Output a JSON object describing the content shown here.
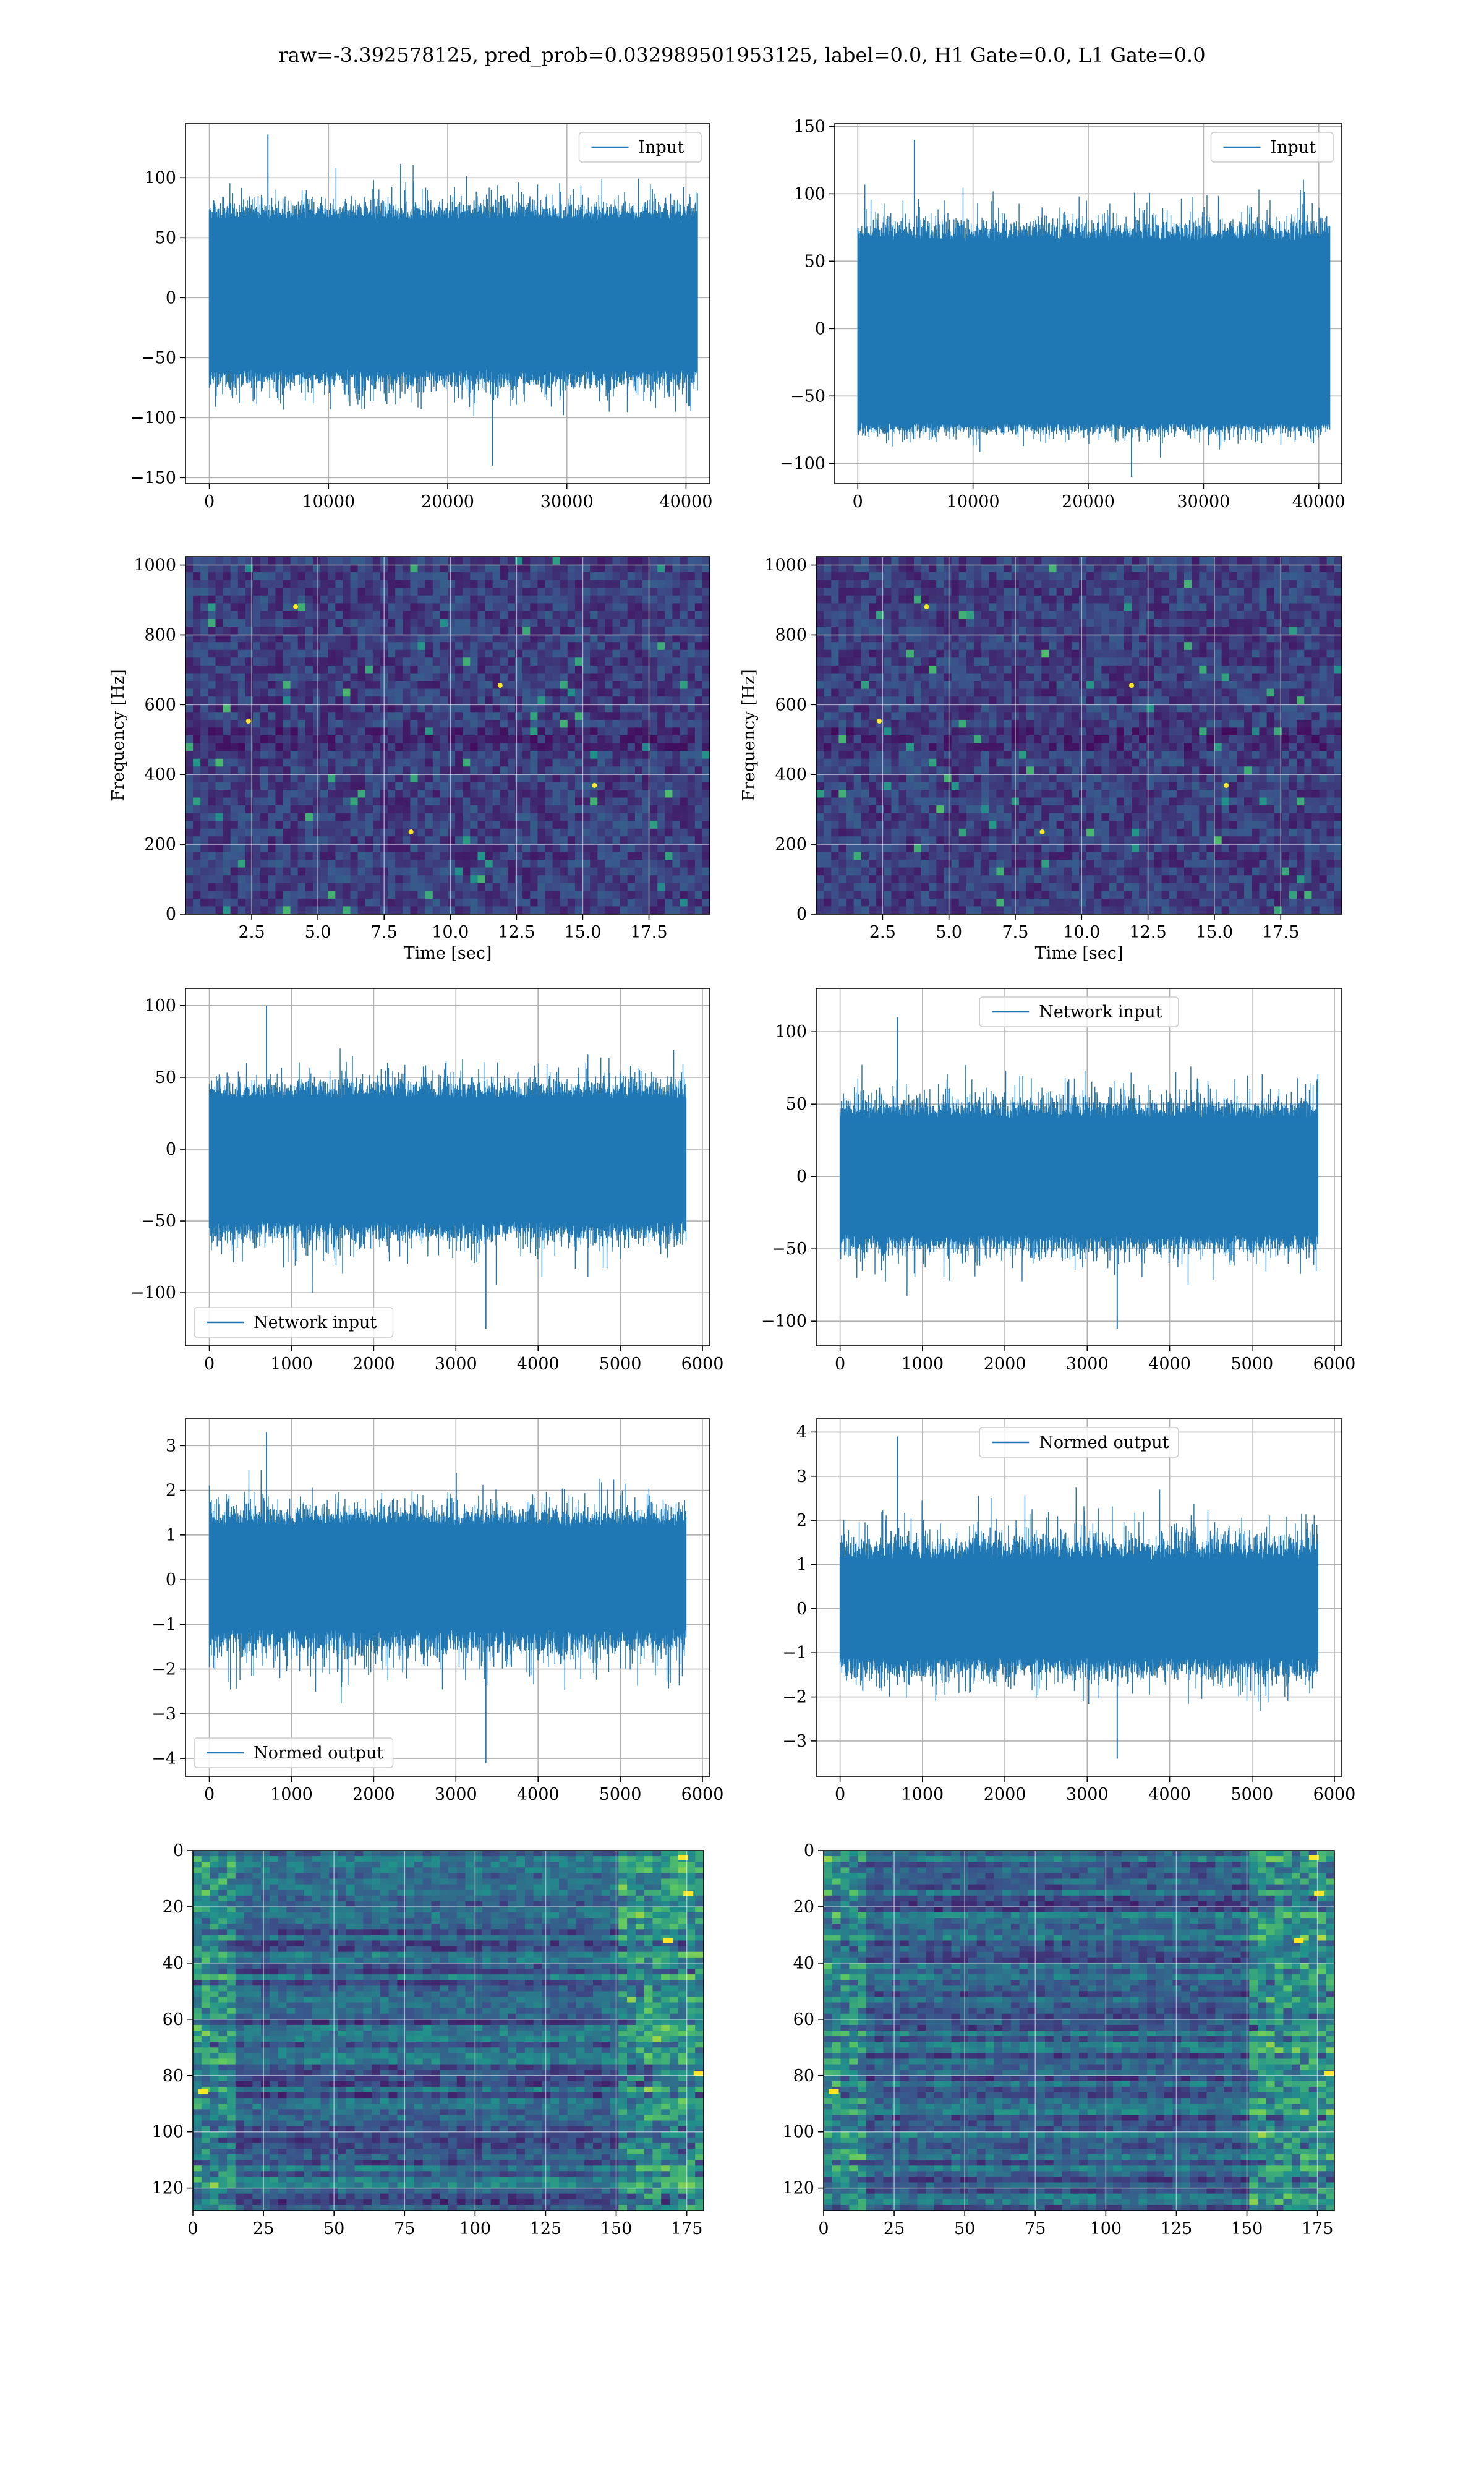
{
  "figure": {
    "title": "raw=-3.392578125, pred_prob=0.032989501953125, label=0.0, H1 Gate=0.0, L1 Gate=0.0"
  },
  "colors": {
    "line": "#1f77b4",
    "grid": "#b0b0b0",
    "spine": "#000000",
    "viridis_dark": "#440154",
    "viridis_mid": "#21918c",
    "viridis_bright": "#fde725"
  },
  "chart_data": [
    {
      "id": "h1-input",
      "type": "line",
      "series": [
        {
          "name": "Input",
          "role": "noise-band"
        }
      ],
      "legend": "top-right",
      "grid": true,
      "xlim": [
        -2000,
        42000
      ],
      "ylim": [
        -155,
        145
      ],
      "xticks": [
        0,
        10000,
        20000,
        30000,
        40000
      ],
      "yticks": [
        -150,
        -100,
        -50,
        0,
        50,
        100
      ],
      "x_range": [
        0,
        40960
      ],
      "band": [
        -60,
        65
      ],
      "spikes": [
        -140,
        136
      ]
    },
    {
      "id": "l1-input",
      "type": "line",
      "series": [
        {
          "name": "Input",
          "role": "noise-band"
        }
      ],
      "legend": "top-right",
      "grid": true,
      "xlim": [
        -2000,
        42000
      ],
      "ylim": [
        -115,
        152
      ],
      "xticks": [
        0,
        10000,
        20000,
        30000,
        40000
      ],
      "yticks": [
        -100,
        -50,
        0,
        50,
        100,
        150
      ],
      "x_range": [
        0,
        40960
      ],
      "band": [
        -70,
        65
      ],
      "spikes": [
        -110,
        140
      ]
    },
    {
      "id": "h1-spectrogram",
      "type": "heatmap",
      "colormap": "viridis",
      "grid": true,
      "xlabel": "Time [sec]",
      "ylabel": "Frequency [Hz]",
      "xlim": [
        0,
        19.8
      ],
      "ylim": [
        0,
        1024
      ],
      "xticks": [
        2.5,
        5.0,
        7.5,
        10.0,
        12.5,
        15.0,
        17.5
      ],
      "yticks": [
        0,
        200,
        400,
        600,
        800,
        1000
      ]
    },
    {
      "id": "l1-spectrogram",
      "type": "heatmap",
      "colormap": "viridis",
      "grid": true,
      "xlabel": "Time [sec]",
      "ylabel": "Frequency [Hz]",
      "xlim": [
        0,
        19.8
      ],
      "ylim": [
        0,
        1024
      ],
      "xticks": [
        2.5,
        5.0,
        7.5,
        10.0,
        12.5,
        15.0,
        17.5
      ],
      "yticks": [
        0,
        200,
        400,
        600,
        800,
        1000
      ]
    },
    {
      "id": "h1-network-input",
      "type": "line",
      "series": [
        {
          "name": "Network input",
          "role": "noise-band"
        }
      ],
      "legend": "bottom-left",
      "grid": true,
      "xlim": [
        -290,
        6090
      ],
      "ylim": [
        -137,
        112
      ],
      "xticks": [
        0,
        1000,
        2000,
        3000,
        4000,
        5000,
        6000
      ],
      "yticks": [
        -100,
        -50,
        0,
        50,
        100
      ],
      "x_range": [
        0,
        5800
      ],
      "band": [
        -50,
        35
      ],
      "spikes": [
        -125,
        100
      ]
    },
    {
      "id": "l1-network-input",
      "type": "line",
      "series": [
        {
          "name": "Network input",
          "role": "noise-band"
        }
      ],
      "legend": "top-center",
      "grid": true,
      "xlim": [
        -290,
        6090
      ],
      "ylim": [
        -117,
        130
      ],
      "xticks": [
        0,
        1000,
        2000,
        3000,
        4000,
        5000,
        6000
      ],
      "yticks": [
        -100,
        -50,
        0,
        50,
        100
      ],
      "x_range": [
        0,
        5800
      ],
      "band": [
        -40,
        40
      ],
      "spikes": [
        -105,
        110
      ]
    },
    {
      "id": "h1-normed-output",
      "type": "line",
      "series": [
        {
          "name": "Normed output",
          "role": "noise-band"
        }
      ],
      "legend": "bottom-left",
      "grid": true,
      "xlim": [
        -290,
        6090
      ],
      "ylim": [
        -4.4,
        3.6
      ],
      "xticks": [
        0,
        1000,
        2000,
        3000,
        4000,
        5000,
        6000
      ],
      "yticks": [
        -4,
        -3,
        -2,
        -1,
        0,
        1,
        2,
        3
      ],
      "x_range": [
        0,
        5800
      ],
      "band": [
        -1.1,
        1.2
      ],
      "spikes": [
        -4.1,
        3.3
      ]
    },
    {
      "id": "l1-normed-output",
      "type": "line",
      "series": [
        {
          "name": "Normed output",
          "role": "noise-band"
        }
      ],
      "legend": "top-center",
      "grid": true,
      "xlim": [
        -290,
        6090
      ],
      "ylim": [
        -3.8,
        4.3
      ],
      "xticks": [
        0,
        1000,
        2000,
        3000,
        4000,
        5000,
        6000
      ],
      "yticks": [
        -3,
        -2,
        -1,
        0,
        1,
        2,
        3,
        4
      ],
      "x_range": [
        0,
        5800
      ],
      "band": [
        -1.1,
        1.1
      ],
      "spikes": [
        -3.4,
        3.9
      ]
    },
    {
      "id": "h1-feature-map",
      "type": "heatmap",
      "colormap": "viridis",
      "grid": true,
      "xlim": [
        0,
        181
      ],
      "ylim": [
        128,
        0
      ],
      "xticks": [
        0,
        25,
        50,
        75,
        100,
        125,
        150,
        175
      ],
      "yticks": [
        0,
        20,
        40,
        60,
        80,
        100,
        120
      ]
    },
    {
      "id": "l1-feature-map",
      "type": "heatmap",
      "colormap": "viridis",
      "grid": true,
      "xlim": [
        0,
        181
      ],
      "ylim": [
        128,
        0
      ],
      "xticks": [
        0,
        25,
        50,
        75,
        100,
        125,
        150,
        175
      ],
      "yticks": [
        0,
        20,
        40,
        60,
        80,
        100,
        120
      ]
    }
  ]
}
